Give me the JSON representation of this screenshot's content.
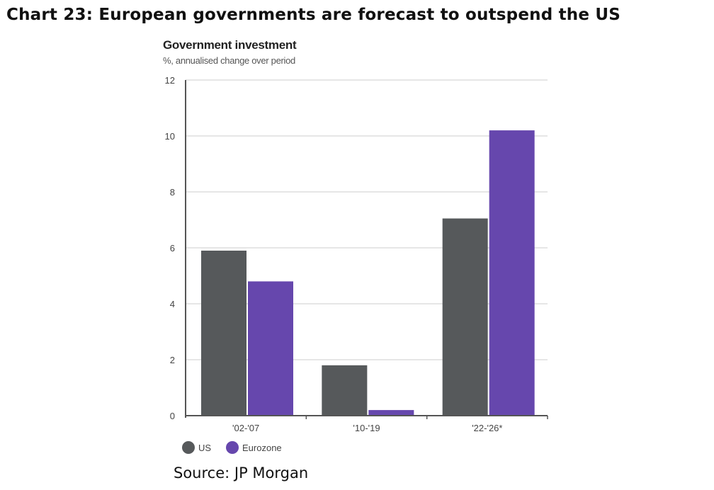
{
  "page_title": "Chart 23: European governments are forecast to outspend the US",
  "source": "Source: JP Morgan",
  "colors": {
    "US": "#56595b",
    "Eurozone": "#6647ad",
    "grid": "#e6e6e6",
    "axis": "#555555"
  },
  "chart_data": {
    "type": "bar",
    "title": "Government investment",
    "subtitle": "%, annualised change over period",
    "xlabel": "",
    "ylabel": "",
    "categories": [
      "'02-'07",
      "'10-'19",
      "'22-'26*"
    ],
    "series": [
      {
        "name": "US",
        "values": [
          5.9,
          1.8,
          7.05
        ]
      },
      {
        "name": "Eurozone",
        "values": [
          4.8,
          0.2,
          10.2
        ]
      }
    ],
    "ylim": [
      0,
      12
    ],
    "yticks": [
      0,
      2,
      4,
      6,
      8,
      10,
      12
    ],
    "grid": true,
    "legend": "bottom-left"
  }
}
